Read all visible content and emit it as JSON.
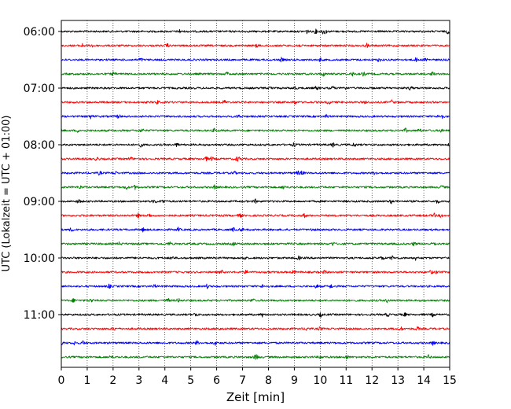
{
  "chart_data": {
    "type": "line",
    "subtype": "helicorder",
    "xlabel": "Zeit  [min]",
    "ylabel": "UTC (Lokalzeit = UTC + 01:00)",
    "xlim": [
      0,
      15
    ],
    "x_ticks": [
      "0",
      "1",
      "2",
      "3",
      "4",
      "5",
      "6",
      "7",
      "8",
      "9",
      "10",
      "11",
      "12",
      "13",
      "14",
      "15"
    ],
    "y_tick_labels": [
      "06:00",
      "07:00",
      "08:00",
      "09:00",
      "10:00",
      "11:00"
    ],
    "trace_interval_minutes": 15,
    "trace_count": 24,
    "trace_start_times": [
      "06:00",
      "06:15",
      "06:30",
      "06:45",
      "07:00",
      "07:15",
      "07:30",
      "07:45",
      "08:00",
      "08:15",
      "08:30",
      "08:45",
      "09:00",
      "09:15",
      "09:30",
      "09:45",
      "10:00",
      "10:15",
      "10:30",
      "10:45",
      "11:00",
      "11:15",
      "11:30",
      "11:45"
    ],
    "color_cycle": [
      "#000000",
      "#ff0000",
      "#0000ff",
      "#008000"
    ],
    "grid": {
      "x": "dotted vertical at each minute",
      "y": false
    },
    "legend": null
  }
}
